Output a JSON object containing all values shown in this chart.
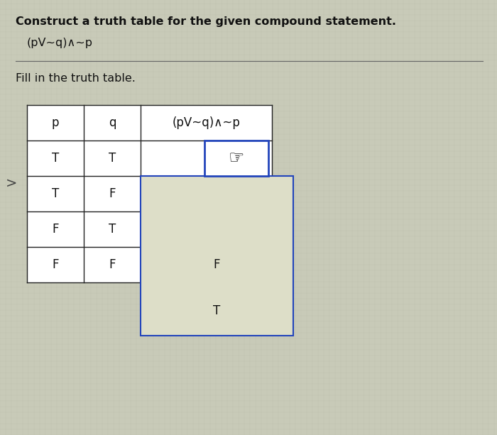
{
  "title": "Construct a truth table for the given compound statement.",
  "formula": "(pV~q)∧~p",
  "subtitle": "Fill in the truth table.",
  "col_headers": [
    "p",
    "q",
    "(pV~q)∧~p"
  ],
  "rows": [
    [
      "T",
      "T"
    ],
    [
      "T",
      "F"
    ],
    [
      "F",
      "T"
    ],
    [
      "F",
      "F"
    ]
  ],
  "bg_color": "#c8cab8",
  "cell_bg": "#ffffff",
  "dropdown_bg": "#dddec8",
  "text_color": "#111111",
  "title_fontsize": 11.5,
  "formula_fontsize": 11.5,
  "subtitle_fontsize": 11.5,
  "cell_fontsize": 12,
  "border_color": "#222222",
  "dropdown_border_color": "#2244bb",
  "separator_color": "#666666"
}
